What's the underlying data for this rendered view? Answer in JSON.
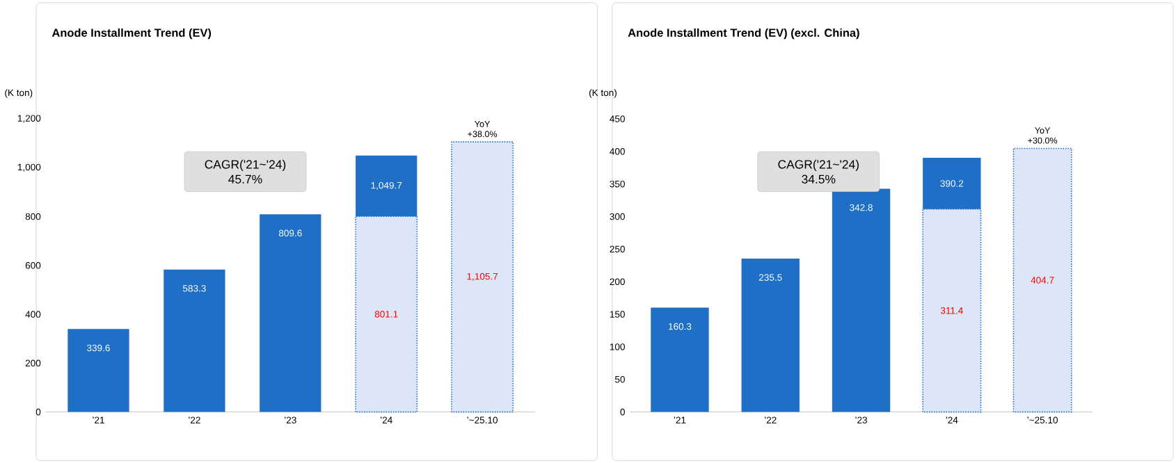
{
  "chart_data": [
    {
      "type": "bar",
      "title": "Anode Installment Trend (EV)",
      "ylabel": "(K ton)",
      "categories": [
        "’21",
        "’22",
        "’23",
        "’24",
        "’~25.10"
      ],
      "stacked": true,
      "series": [
        {
          "color": "#dce6f6",
          "line_style": "dotted",
          "values": [
            null,
            null,
            null,
            801.1,
            1105.7
          ],
          "value_labels": [
            null,
            null,
            null,
            "801.1",
            "1,105.7"
          ]
        },
        {
          "color": "#1f6fc6",
          "values": [
            339.6,
            583.3,
            809.6,
            248.6,
            null
          ],
          "value_labels": [
            "339.6",
            "583.3",
            "809.6",
            null,
            null
          ]
        }
      ],
      "totals": [
        null,
        null,
        null,
        "1,049.7",
        null
      ],
      "ylim": [
        0,
        1200
      ],
      "yticks": [
        0,
        200,
        400,
        600,
        800,
        {
          "value": 1000,
          "label": "1,000"
        },
        {
          "value": 1200,
          "label": "1,200"
        }
      ],
      "annotations": [
        "CAGR('21~'24)",
        "45.7%",
        {
          "text": "YoY +38.0%",
          "x": "’~25.10",
          "y": 1105.7
        }
      ]
    },
    {
      "type": "bar",
      "title": "Anode Installment Trend (EV) (excl. China)",
      "ylabel": "(K ton)",
      "categories": [
        "’21",
        "’22",
        "’23",
        "’24",
        "’~25.10"
      ],
      "stacked": true,
      "series": [
        {
          "color": "#dce6f6",
          "line_style": "dotted",
          "values": [
            null,
            null,
            null,
            311.4,
            404.7
          ],
          "value_labels": [
            null,
            null,
            null,
            "311.4",
            "404.7"
          ]
        },
        {
          "color": "#1f6fc6",
          "values": [
            160.3,
            235.5,
            342.8,
            78.8,
            null
          ],
          "value_labels": [
            "160.3",
            "235.5",
            "342.8",
            null,
            null
          ]
        }
      ],
      "totals": [
        null,
        null,
        null,
        "390.2",
        null
      ],
      "ylim": [
        0,
        450
      ],
      "yticks": [
        0,
        50,
        100,
        150,
        200,
        250,
        300,
        350,
        400,
        450
      ],
      "annotations": [
        "CAGR('21~'24)",
        "34.5%",
        {
          "text": "YoY +30.0%",
          "x": "’~25.10",
          "y": 404.7
        }
      ]
    }
  ]
}
